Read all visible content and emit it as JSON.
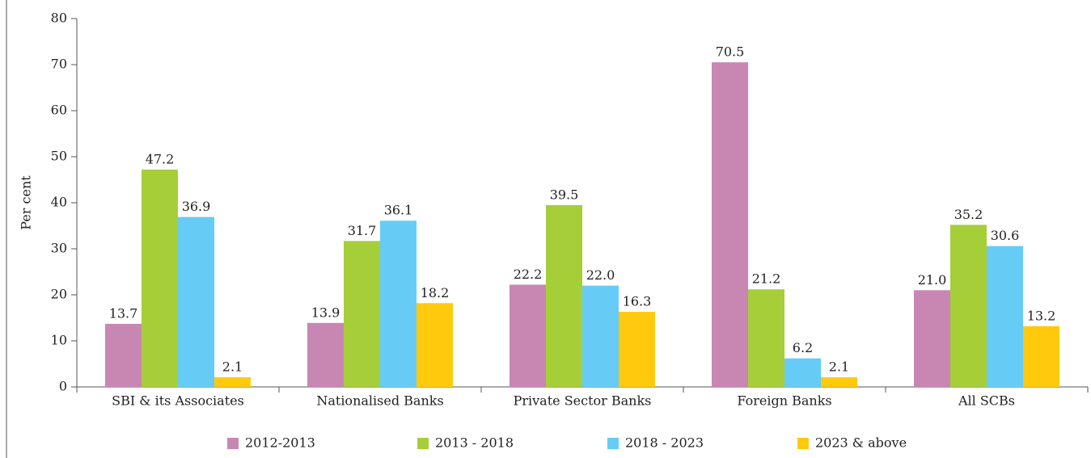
{
  "chart_data": {
    "type": "bar",
    "y_label": "Per cent",
    "categories": [
      "SBI & its Associates",
      "Nationalised Banks",
      "Private Sector Banks",
      "Foreign Banks",
      "All SCBs"
    ],
    "series": [
      {
        "name": "2012-2013",
        "color": "#c886b2",
        "values": [
          13.7,
          13.9,
          22.2,
          70.5,
          21
        ],
        "value_labels": [
          "13.7",
          "13.9",
          "22.2",
          "70.5",
          "21.0"
        ]
      },
      {
        "name": "2013 - 2018",
        "color": "#a6ce39",
        "values": [
          47.2,
          31.7,
          39.5,
          21.2,
          35.2
        ],
        "value_labels": [
          "47.2",
          "31.7",
          "39.5",
          "21.2",
          "35.2"
        ]
      },
      {
        "name": "2018 - 2023",
        "color": "#66ccf5",
        "values": [
          36.9,
          36.1,
          22,
          6.2,
          30.6
        ],
        "value_labels": [
          "36.9",
          "36.1",
          "22.0",
          "6.2",
          "30.6"
        ]
      },
      {
        "name": "2023 & above",
        "color": "#ffc90e",
        "values": [
          2.1,
          18.2,
          16.3,
          2.1,
          13.2
        ],
        "value_labels": [
          "2.1",
          "18.2",
          "16.3",
          "2.1",
          "13.2"
        ]
      }
    ],
    "ylim": [
      0,
      80
    ],
    "yticks": [
      0,
      10,
      20,
      30,
      40,
      50,
      60,
      70,
      80
    ],
    "grid": false,
    "legend": "bottom"
  }
}
